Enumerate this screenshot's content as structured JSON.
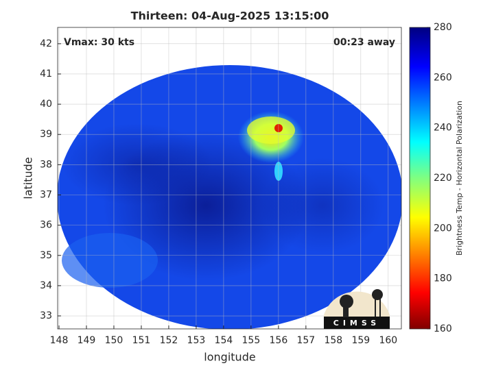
{
  "chart_data": {
    "type": "image",
    "title": "Thirteen: 04-Aug-2025 13:15:00",
    "x_label": "longitude",
    "y_label": "latitude",
    "annotations": [
      "Vmax: 30 kts",
      "00:23 away"
    ],
    "xlim": [
      147.95,
      160.48
    ],
    "xticks": [
      148,
      149,
      150,
      151,
      152,
      153,
      154,
      155,
      156,
      157,
      158,
      159,
      160
    ],
    "ylim": [
      32.57,
      42.54
    ],
    "yticks": [
      33,
      34,
      35,
      36,
      37,
      38,
      39,
      40,
      41,
      42
    ],
    "grid": true,
    "colorbar": {
      "label": "Brightness Temp - Horizontal Polarization",
      "clim": [
        160,
        280
      ],
      "ticks": [
        160,
        180,
        200,
        220,
        240,
        260,
        280
      ],
      "colormap": "jet"
    },
    "logo": "CIMSS"
  }
}
